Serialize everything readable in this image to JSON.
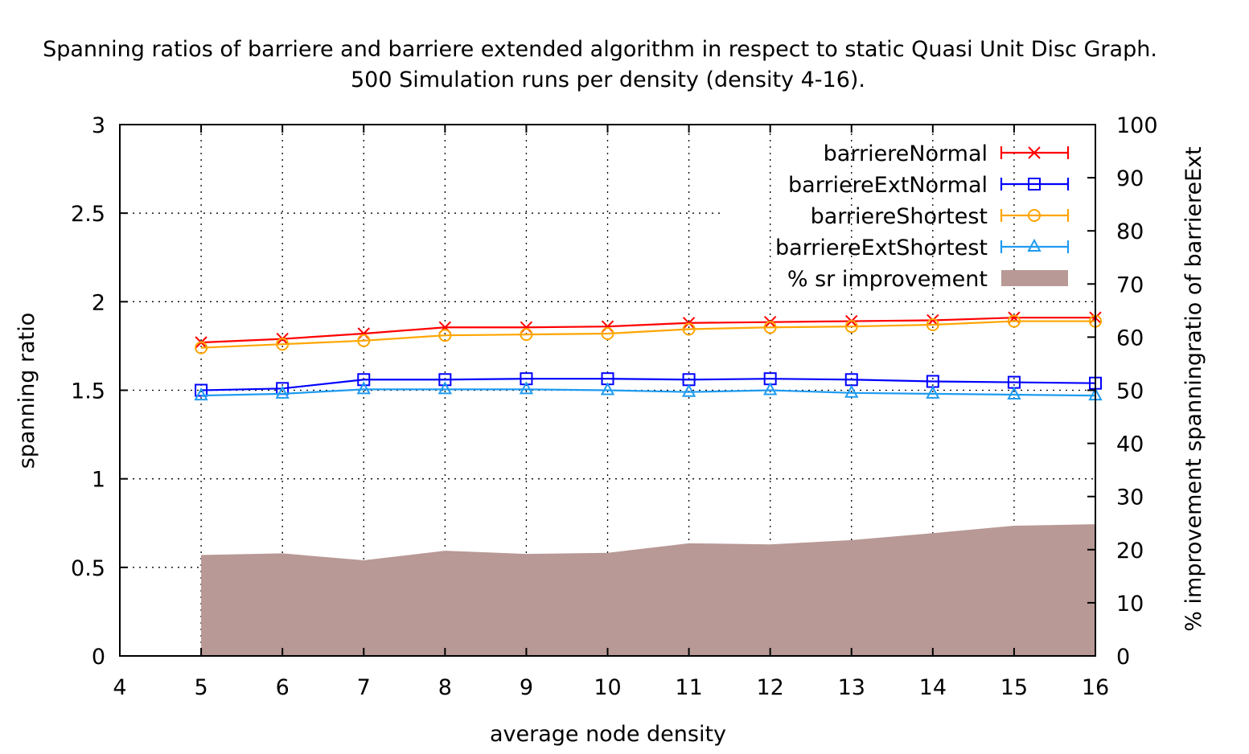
{
  "chart_data": {
    "type": "line",
    "title": "Spanning ratios of barriere and barriere extended algorithm in respect to static Quasi Unit Disc Graph.",
    "subtitle": "500 Simulation runs per density (density 4-16).",
    "xlabel": "average node density",
    "ylabel": "spanning ratio",
    "y2label": "% improvement spanningratio of barriereExt",
    "xlim": [
      4,
      16
    ],
    "ylim": [
      0,
      3
    ],
    "y2lim": [
      0,
      100
    ],
    "x_ticks": [
      "4",
      "5",
      "6",
      "7",
      "8",
      "9",
      "10",
      "11",
      "12",
      "13",
      "14",
      "15",
      "16"
    ],
    "y_ticks": [
      "0",
      "0.5",
      "1",
      "1.5",
      "2",
      "2.5",
      "3"
    ],
    "y2_ticks": [
      "0",
      "10",
      "20",
      "30",
      "40",
      "50",
      "60",
      "70",
      "80",
      "90",
      "100"
    ],
    "grid": true,
    "legend_position": "top-right",
    "x": [
      5,
      6,
      7,
      8,
      9,
      10,
      11,
      12,
      13,
      14,
      15,
      16
    ],
    "series": [
      {
        "name": "barriereNormal",
        "type": "line",
        "axis": "y",
        "color": "#ff0000",
        "marker": "x",
        "values": [
          1.77,
          1.79,
          1.82,
          1.855,
          1.855,
          1.86,
          1.88,
          1.885,
          1.89,
          1.895,
          1.91,
          1.91
        ]
      },
      {
        "name": "barriereExtNormal",
        "type": "line",
        "axis": "y",
        "color": "#0000ff",
        "marker": "square",
        "values": [
          1.5,
          1.51,
          1.56,
          1.56,
          1.565,
          1.565,
          1.56,
          1.565,
          1.56,
          1.55,
          1.545,
          1.54
        ]
      },
      {
        "name": "barriereShortest",
        "type": "line",
        "axis": "y",
        "color": "#ffa500",
        "marker": "circle",
        "values": [
          1.74,
          1.76,
          1.78,
          1.81,
          1.815,
          1.82,
          1.845,
          1.855,
          1.86,
          1.87,
          1.89,
          1.89
        ]
      },
      {
        "name": "barriereExtShortest",
        "type": "line",
        "axis": "y",
        "color": "#1e9bf0",
        "marker": "triangle",
        "values": [
          1.47,
          1.48,
          1.505,
          1.505,
          1.505,
          1.5,
          1.49,
          1.5,
          1.485,
          1.48,
          1.475,
          1.47
        ]
      },
      {
        "name": "% sr improvement",
        "type": "area",
        "axis": "y2",
        "color": "#b89996",
        "values": [
          19,
          19.3,
          18,
          19.8,
          19.2,
          19.4,
          21.2,
          21,
          21.8,
          23.1,
          24.5,
          24.8
        ]
      }
    ]
  }
}
